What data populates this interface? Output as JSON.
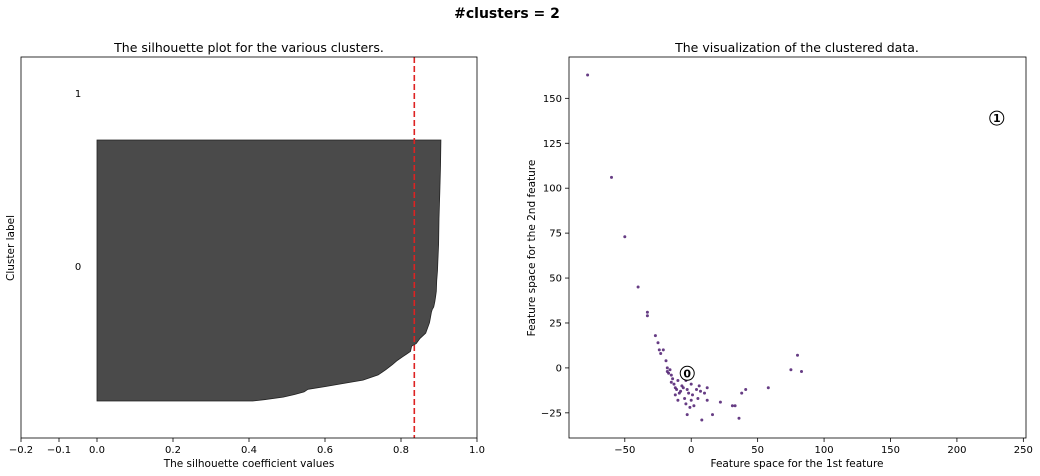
{
  "figure": {
    "suptitle": "#clusters = 2"
  },
  "chart_data": [
    {
      "type": "area",
      "name": "silhouette",
      "title": "The silhouette plot for the various clusters.",
      "xlabel": "The silhouette coefficient values",
      "ylabel": "Cluster label",
      "xlim": [
        -0.2,
        1.0
      ],
      "xticks": [
        -0.2,
        -0.1,
        0.0,
        0.2,
        0.4,
        0.6,
        0.8,
        1.0
      ],
      "tick_labels": [
        "−0.2",
        "−0.1",
        "0.0",
        "0.2",
        "0.4",
        "0.6",
        "0.8",
        "1.0"
      ],
      "yticks": [],
      "grid": false,
      "average_line": {
        "value": 0.835,
        "color": "#dd2222",
        "style": "dashed"
      },
      "clusters": [
        {
          "label": "0",
          "color": "#4a4a4a",
          "profile": [
            [
              0.0,
              0.905
            ],
            [
              0.1,
              0.904
            ],
            [
              0.2,
              0.902
            ],
            [
              0.3,
              0.9
            ],
            [
              0.4,
              0.899
            ],
            [
              0.46,
              0.897
            ],
            [
              0.5,
              0.896
            ],
            [
              0.54,
              0.894
            ],
            [
              0.58,
              0.893
            ],
            [
              0.6,
              0.891
            ],
            [
              0.62,
              0.889
            ],
            [
              0.64,
              0.886
            ],
            [
              0.65,
              0.882
            ],
            [
              0.66,
              0.88
            ],
            [
              0.7,
              0.875
            ],
            [
              0.74,
              0.865
            ],
            [
              0.76,
              0.85
            ],
            [
              0.77,
              0.845
            ],
            [
              0.78,
              0.84
            ],
            [
              0.79,
              0.828
            ],
            [
              0.81,
              0.825
            ],
            [
              0.82,
              0.815
            ],
            [
              0.83,
              0.805
            ],
            [
              0.845,
              0.79
            ],
            [
              0.86,
              0.778
            ],
            [
              0.88,
              0.76
            ],
            [
              0.9,
              0.74
            ],
            [
              0.92,
              0.7
            ],
            [
              0.935,
              0.64
            ],
            [
              0.945,
              0.6
            ],
            [
              0.955,
              0.555
            ],
            [
              0.965,
              0.545
            ],
            [
              0.975,
              0.52
            ],
            [
              0.985,
              0.49
            ],
            [
              0.995,
              0.44
            ],
            [
              1.0,
              0.41
            ]
          ]
        },
        {
          "label": "1",
          "color": "#4a4a4a",
          "profile": []
        }
      ]
    },
    {
      "type": "scatter",
      "name": "clusters",
      "title": "The visualization of the clustered data.",
      "xlabel": "Feature space for the 1st feature",
      "ylabel": "Feature space for the 2nd feature",
      "xlim": [
        -92,
        252
      ],
      "ylim": [
        -39,
        173
      ],
      "xticks": [
        -50,
        0,
        50,
        100,
        150,
        200,
        250
      ],
      "xtick_labels": [
        "−50",
        "0",
        "50",
        "100",
        "150",
        "200",
        "250"
      ],
      "yticks": [
        -25,
        0,
        25,
        50,
        75,
        100,
        125,
        150
      ],
      "ytick_labels": [
        "−25",
        "0",
        "25",
        "50",
        "75",
        "100",
        "125",
        "150"
      ],
      "grid": false,
      "point_color": "#4b1a6e",
      "points": [
        [
          -78,
          163
        ],
        [
          -60,
          106
        ],
        [
          -50,
          73
        ],
        [
          -40,
          45
        ],
        [
          -33,
          31
        ],
        [
          -33,
          29
        ],
        [
          -27,
          18
        ],
        [
          -25,
          14
        ],
        [
          -24,
          10
        ],
        [
          -23,
          8
        ],
        [
          -21,
          10
        ],
        [
          -19,
          4
        ],
        [
          -18,
          0
        ],
        [
          -18,
          -2
        ],
        [
          -17,
          -3
        ],
        [
          -16,
          -1
        ],
        [
          -15,
          -4
        ],
        [
          -14,
          -6
        ],
        [
          -15,
          -8
        ],
        [
          -13,
          -9
        ],
        [
          -12,
          -11
        ],
        [
          -10,
          -7
        ],
        [
          -11,
          -12
        ],
        [
          -9,
          -14
        ],
        [
          -12,
          -15
        ],
        [
          -10,
          -18
        ],
        [
          -8,
          -13
        ],
        [
          -7,
          -10
        ],
        [
          -5,
          -17
        ],
        [
          -4,
          -20
        ],
        [
          -3,
          -12
        ],
        [
          -2,
          -14
        ],
        [
          -1,
          -22
        ],
        [
          0,
          -18
        ],
        [
          -3,
          -26
        ],
        [
          1,
          -15
        ],
        [
          2,
          -21
        ],
        [
          4,
          -12
        ],
        [
          5,
          -17
        ],
        [
          6,
          -10
        ],
        [
          7,
          -13
        ],
        [
          8,
          -29
        ],
        [
          10,
          -14
        ],
        [
          12,
          -18
        ],
        [
          12,
          -11
        ],
        [
          16,
          -26
        ],
        [
          22,
          -19
        ],
        [
          31,
          -21
        ],
        [
          33,
          -21
        ],
        [
          36,
          -28
        ],
        [
          38,
          -14
        ],
        [
          41,
          -12
        ],
        [
          58,
          -11
        ],
        [
          75,
          -1
        ],
        [
          80,
          7
        ],
        [
          83,
          -2
        ],
        [
          -4,
          -7
        ],
        [
          0,
          -9
        ],
        [
          -6,
          -11
        ]
      ],
      "centers": [
        {
          "label": "0",
          "x": -3,
          "y": -3
        },
        {
          "label": "1",
          "x": 230,
          "y": 139
        }
      ]
    }
  ]
}
